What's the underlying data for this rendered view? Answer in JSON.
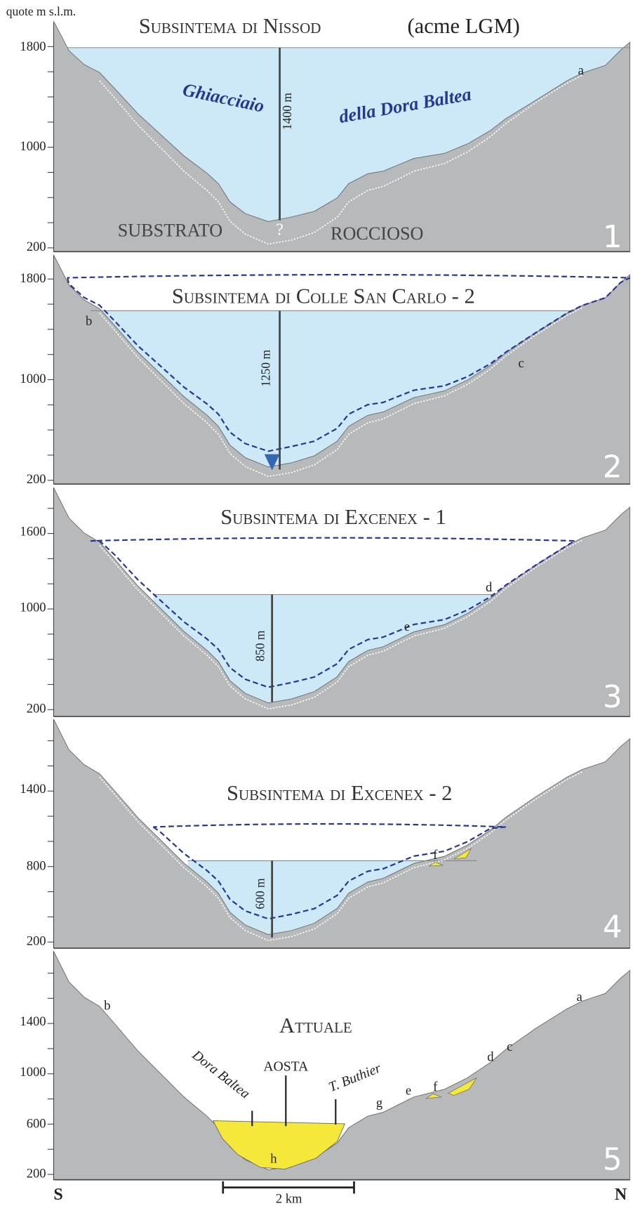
{
  "axis_label": "quote m s.l.m.",
  "panels": [
    {
      "number": "1",
      "title": "Subsintema di Nissod",
      "subtitle": "(acme LGM)",
      "ticks": [
        "1800",
        "1000",
        "200"
      ],
      "thickness": "1400 m",
      "labels": {
        "glacier_1": "Ghiacciaio",
        "glacier_2": "della Dora Baltea",
        "bedrock_1": "SUBSTRATO",
        "question": "?",
        "bedrock_2": "ROCCIOSO",
        "a": "a"
      }
    },
    {
      "number": "2",
      "title": "Subsintema di Colle San Carlo - 2",
      "ticks": [
        "1800",
        "1000",
        "200"
      ],
      "thickness": "1250 m",
      "labels": {
        "b": "b",
        "c": "c"
      }
    },
    {
      "number": "3",
      "title": "Subsintema di Excenex - 1",
      "ticks": [
        "1600",
        "1000",
        "200"
      ],
      "thickness": "850 m",
      "labels": {
        "d": "d",
        "e": "e"
      }
    },
    {
      "number": "4",
      "title": "Subsintema di Excenex - 2",
      "ticks": [
        "1400",
        "800",
        "200"
      ],
      "thickness": "600 m",
      "labels": {
        "f": "f"
      }
    },
    {
      "number": "5",
      "title": "Attuale",
      "ticks": [
        "1400",
        "1000",
        "600",
        "200"
      ],
      "labels": {
        "a": "a",
        "b": "b",
        "c": "c",
        "d": "d",
        "e": "e",
        "f": "f",
        "g": "g",
        "h": "h",
        "river": "Dora Baltea",
        "city": "AOSTA",
        "torrent": "T. Buthier"
      }
    }
  ],
  "footer": {
    "south": "S",
    "north": "N",
    "scale": "2 km"
  }
}
